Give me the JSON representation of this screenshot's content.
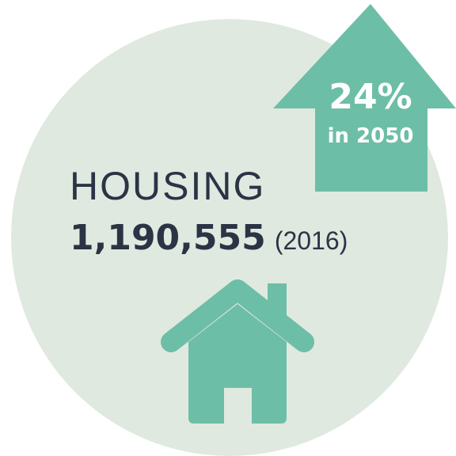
{
  "arrow": {
    "value": "24%",
    "caption": "in 2050"
  },
  "title": "HOUSING",
  "count": "1,190,555",
  "year": "(2016)"
}
